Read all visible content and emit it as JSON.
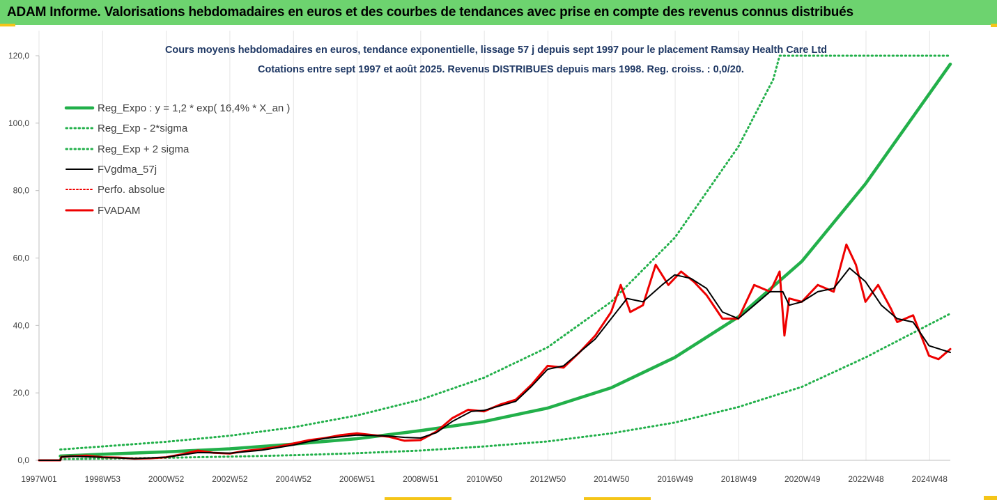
{
  "banner": {
    "title": "ADAM Informe. Valorisations hebdomadaires en euros et des courbes de tendances avec prise en compte des revenus connus distribués"
  },
  "colors": {
    "banner_bg": "#6dd36f",
    "trend": "#22b04a",
    "band": "#22b04a",
    "ma": "#000000",
    "adam": "#ee0000",
    "accent": "#f5c518"
  },
  "chart_data": {
    "type": "line",
    "title": "Cours moyens hebdomadaires en euros, tendance exponentielle, lissage 57 j depuis sept 1997 pour le placement Ramsay Health Care Ltd",
    "subtitle": "Cotations entre sept 1997 et août 2025. Revenus DISTRIBUES depuis mars 1998. Reg. croiss. : 0,0/20.",
    "xlabel": "",
    "ylabel": "",
    "ylim": [
      0,
      120
    ],
    "y_ticks": [
      "0,0",
      "20,0",
      "40,0",
      "60,0",
      "80,0",
      "100,0",
      "120,0"
    ],
    "x_ticks": [
      "1997W01",
      "1998W53",
      "2000W52",
      "2002W52",
      "2004W52",
      "2006W51",
      "2008W51",
      "2010W50",
      "2012W50",
      "2014W50",
      "2016W49",
      "2018W49",
      "2020W49",
      "2022W48",
      "2024W48"
    ],
    "x_range": [
      1997.0,
      2025.67
    ],
    "grid": "vertical",
    "legend_position": "top-left",
    "legend": [
      "Reg_Expo : y = 1,2 * exp( 16,4% *  X_an )",
      "Reg_Exp - 2*sigma",
      "Reg_Exp + 2 sigma",
      "FVgdma_57j",
      "Perfo. absolue",
      "FVADAM"
    ],
    "series": [
      {
        "name": "Reg_Expo : y = 1,2 * exp( 16,4% *  X_an )",
        "style": "solid",
        "points": [
          [
            1997.67,
            1.25
          ],
          [
            1999,
            1.8
          ],
          [
            2001,
            2.5
          ],
          [
            2003,
            3.4
          ],
          [
            2005,
            4.8
          ],
          [
            2007,
            6.4
          ],
          [
            2009,
            8.8
          ],
          [
            2011,
            11.5
          ],
          [
            2013,
            15.5
          ],
          [
            2015,
            21.5
          ],
          [
            2017,
            30.5
          ],
          [
            2019,
            42.5
          ],
          [
            2021,
            59
          ],
          [
            2023,
            82
          ],
          [
            2025.67,
            117.5
          ]
        ]
      },
      {
        "name": "Reg_Exp - 2*sigma",
        "style": "dotted",
        "points": [
          [
            1997.67,
            0.35
          ],
          [
            1999,
            0.5
          ],
          [
            2001,
            0.75
          ],
          [
            2003,
            1.1
          ],
          [
            2005,
            1.5
          ],
          [
            2007,
            2.1
          ],
          [
            2009,
            2.9
          ],
          [
            2011,
            4.1
          ],
          [
            2013,
            5.6
          ],
          [
            2015,
            8.0
          ],
          [
            2017,
            11.2
          ],
          [
            2019,
            15.8
          ],
          [
            2021,
            21.8
          ],
          [
            2023,
            30.5
          ],
          [
            2025.67,
            43.5
          ]
        ]
      },
      {
        "name": "Reg_Exp + 2 sigma",
        "style": "dotted",
        "points": [
          [
            1997.67,
            3.2
          ],
          [
            1999,
            4.1
          ],
          [
            2001,
            5.5
          ],
          [
            2003,
            7.3
          ],
          [
            2005,
            9.8
          ],
          [
            2007,
            13.3
          ],
          [
            2009,
            18
          ],
          [
            2011,
            24.5
          ],
          [
            2013,
            33.5
          ],
          [
            2015,
            47
          ],
          [
            2017,
            66
          ],
          [
            2019,
            93
          ],
          [
            2020.1,
            113
          ],
          [
            2020.3,
            120
          ],
          [
            2025.67,
            120
          ]
        ]
      },
      {
        "name": "FVgdma_57j",
        "style": "solid",
        "points": [
          [
            1997.0,
            0
          ],
          [
            1997.67,
            0
          ],
          [
            1997.7,
            1.0
          ],
          [
            1998,
            1.2
          ],
          [
            1999,
            0.9
          ],
          [
            2000,
            0.5
          ],
          [
            2001,
            0.9
          ],
          [
            2002,
            2.3
          ],
          [
            2002.5,
            2.2
          ],
          [
            2003,
            2.1
          ],
          [
            2004,
            3.0
          ],
          [
            2005,
            4.5
          ],
          [
            2005.5,
            5.6
          ],
          [
            2006,
            6.5
          ],
          [
            2007,
            7.5
          ],
          [
            2008,
            7.2
          ],
          [
            2008.5,
            6.8
          ],
          [
            2009,
            6.6
          ],
          [
            2009.5,
            8.2
          ],
          [
            2010,
            11.5
          ],
          [
            2010.6,
            14.5
          ],
          [
            2011,
            14.8
          ],
          [
            2012,
            17.5
          ],
          [
            2012.5,
            22.0
          ],
          [
            2013,
            27.0
          ],
          [
            2013.5,
            28.0
          ],
          [
            2014,
            32.0
          ],
          [
            2014.5,
            36.0
          ],
          [
            2015,
            42.0
          ],
          [
            2015.5,
            48.0
          ],
          [
            2016,
            47.0
          ],
          [
            2016.6,
            52.0
          ],
          [
            2017,
            55.0
          ],
          [
            2017.5,
            54.0
          ],
          [
            2018,
            51.0
          ],
          [
            2018.5,
            44.0
          ],
          [
            2019,
            42.0
          ],
          [
            2019.5,
            46.0
          ],
          [
            2020,
            50.0
          ],
          [
            2020.4,
            50.0
          ],
          [
            2020.6,
            46.0
          ],
          [
            2021,
            47.0
          ],
          [
            2021.5,
            50.0
          ],
          [
            2022,
            51.0
          ],
          [
            2022.5,
            57.0
          ],
          [
            2023,
            53.0
          ],
          [
            2023.5,
            46.0
          ],
          [
            2024,
            42.0
          ],
          [
            2024.5,
            41.0
          ],
          [
            2025,
            34.0
          ],
          [
            2025.67,
            32.0
          ]
        ]
      },
      {
        "name": "Perfo. absolue",
        "style": "dotted",
        "points": []
      },
      {
        "name": "FVADAM",
        "style": "solid",
        "points": [
          [
            1997.0,
            0
          ],
          [
            1997.67,
            0
          ],
          [
            1997.7,
            1.0
          ],
          [
            1998,
            1.2
          ],
          [
            1998.5,
            1.4
          ],
          [
            1999,
            0.9
          ],
          [
            1999.5,
            0.8
          ],
          [
            2000,
            0.5
          ],
          [
            2000.5,
            0.6
          ],
          [
            2001,
            0.9
          ],
          [
            2001.5,
            1.8
          ],
          [
            2002,
            2.9
          ],
          [
            2002.5,
            2.2
          ],
          [
            2003,
            2.0
          ],
          [
            2003.5,
            2.8
          ],
          [
            2004,
            3.3
          ],
          [
            2004.5,
            4.0
          ],
          [
            2005,
            5.0
          ],
          [
            2005.5,
            6.0
          ],
          [
            2006,
            6.6
          ],
          [
            2006.5,
            7.5
          ],
          [
            2007,
            8.0
          ],
          [
            2007.5,
            7.5
          ],
          [
            2008,
            7.0
          ],
          [
            2008.5,
            5.8
          ],
          [
            2009,
            6.0
          ],
          [
            2009.5,
            8.5
          ],
          [
            2010,
            12.5
          ],
          [
            2010.5,
            15.0
          ],
          [
            2011,
            14.5
          ],
          [
            2011.5,
            16.5
          ],
          [
            2012,
            18.0
          ],
          [
            2012.5,
            22.5
          ],
          [
            2013,
            28.0
          ],
          [
            2013.5,
            27.5
          ],
          [
            2014,
            32.0
          ],
          [
            2014.5,
            37.0
          ],
          [
            2015,
            44.0
          ],
          [
            2015.3,
            52.0
          ],
          [
            2015.6,
            44.0
          ],
          [
            2016,
            46.0
          ],
          [
            2016.4,
            58.0
          ],
          [
            2016.8,
            52.0
          ],
          [
            2017.2,
            56.0
          ],
          [
            2017.6,
            53.0
          ],
          [
            2018,
            49.0
          ],
          [
            2018.5,
            42.0
          ],
          [
            2019,
            42.0
          ],
          [
            2019.5,
            52.0
          ],
          [
            2020,
            50.0
          ],
          [
            2020.3,
            56.0
          ],
          [
            2020.45,
            37.0
          ],
          [
            2020.6,
            48.0
          ],
          [
            2021,
            47.0
          ],
          [
            2021.5,
            52.0
          ],
          [
            2022,
            50.0
          ],
          [
            2022.4,
            64.0
          ],
          [
            2022.7,
            58.0
          ],
          [
            2023,
            47.0
          ],
          [
            2023.4,
            52.0
          ],
          [
            2023.8,
            45.0
          ],
          [
            2024,
            41.0
          ],
          [
            2024.5,
            43.0
          ],
          [
            2025,
            31.0
          ],
          [
            2025.3,
            30.0
          ],
          [
            2025.67,
            33.0
          ]
        ]
      }
    ]
  }
}
